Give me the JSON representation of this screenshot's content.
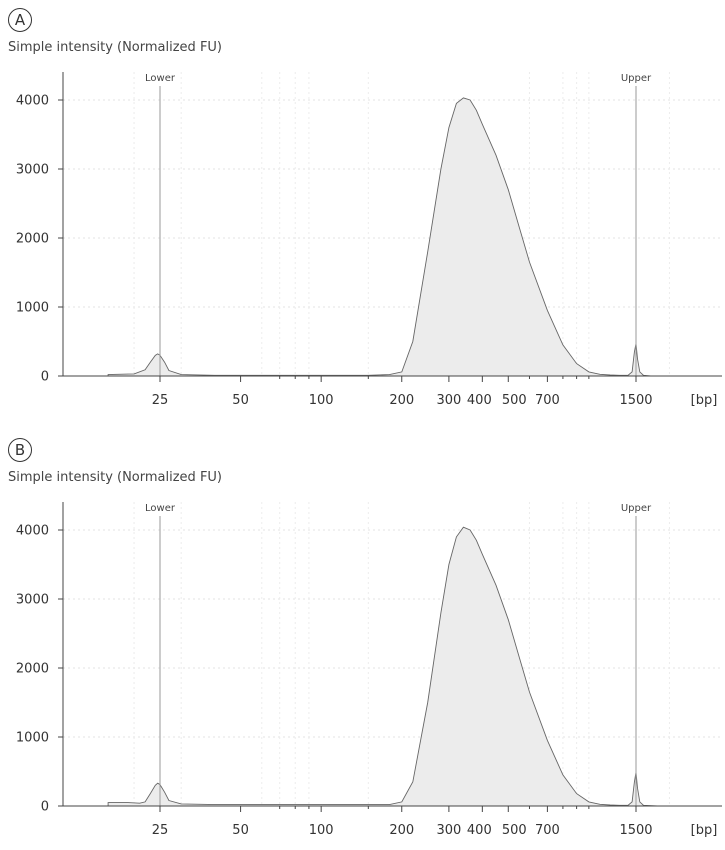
{
  "chart_data": [
    {
      "type": "area",
      "panel_label": "A",
      "ylabel": "Simple intensity (Normalized FU)",
      "x_unit": "[bp]",
      "x_scale": "log",
      "x_ticks": [
        25,
        50,
        100,
        200,
        300,
        400,
        500,
        700,
        1500
      ],
      "x_tick_labels": [
        "25",
        "50",
        "100",
        "200",
        "300",
        "400",
        "500",
        "700",
        "1500"
      ],
      "y_ticks": [
        0,
        1000,
        2000,
        3000,
        4000
      ],
      "ylim": [
        0,
        4400
      ],
      "grid": true,
      "markers": [
        {
          "label": "Lower",
          "x": 25
        },
        {
          "label": "Upper",
          "x": 1500
        }
      ],
      "series": [
        {
          "x": [
            16,
            20,
            22,
            23,
            24,
            24.5,
            25,
            26,
            27,
            30,
            40,
            60,
            100,
            150,
            180,
            200,
            220,
            250,
            280,
            300,
            320,
            340,
            360,
            380,
            400,
            450,
            500,
            550,
            600,
            700,
            800,
            900,
            1000,
            1100,
            1200,
            1300,
            1400,
            1450,
            1480,
            1500,
            1520,
            1550,
            1600,
            1700
          ],
          "y": [
            20,
            30,
            90,
            200,
            300,
            320,
            300,
            200,
            80,
            20,
            10,
            10,
            10,
            10,
            20,
            60,
            500,
            1800,
            3000,
            3600,
            3950,
            4030,
            4000,
            3850,
            3650,
            3200,
            2700,
            2150,
            1650,
            950,
            450,
            180,
            60,
            25,
            15,
            10,
            10,
            60,
            350,
            470,
            250,
            60,
            10,
            0
          ]
        }
      ]
    },
    {
      "type": "area",
      "panel_label": "B",
      "ylabel": "Simple intensity (Normalized FU)",
      "x_unit": "[bp]",
      "x_scale": "log",
      "x_ticks": [
        25,
        50,
        100,
        200,
        300,
        400,
        500,
        700,
        1500
      ],
      "x_tick_labels": [
        "25",
        "50",
        "100",
        "200",
        "300",
        "400",
        "500",
        "700",
        "1500"
      ],
      "y_ticks": [
        0,
        1000,
        2000,
        3000,
        4000
      ],
      "ylim": [
        0,
        4400
      ],
      "grid": true,
      "markers": [
        {
          "label": "Lower",
          "x": 25
        },
        {
          "label": "Upper",
          "x": 1500
        }
      ],
      "series": [
        {
          "x": [
            16,
            19,
            21,
            22,
            23,
            24,
            24.5,
            25,
            26,
            27,
            30,
            40,
            60,
            100,
            150,
            180,
            200,
            220,
            250,
            280,
            300,
            320,
            340,
            360,
            380,
            400,
            450,
            500,
            550,
            600,
            700,
            800,
            900,
            1000,
            1100,
            1200,
            1300,
            1400,
            1450,
            1480,
            1500,
            1520,
            1550,
            1600,
            1800
          ],
          "y": [
            50,
            50,
            40,
            60,
            180,
            300,
            330,
            310,
            200,
            80,
            30,
            20,
            20,
            20,
            20,
            20,
            60,
            350,
            1500,
            2800,
            3500,
            3900,
            4040,
            4000,
            3850,
            3650,
            3200,
            2700,
            2150,
            1650,
            950,
            450,
            180,
            60,
            25,
            15,
            10,
            10,
            60,
            350,
            490,
            260,
            60,
            10,
            0
          ]
        }
      ]
    }
  ]
}
